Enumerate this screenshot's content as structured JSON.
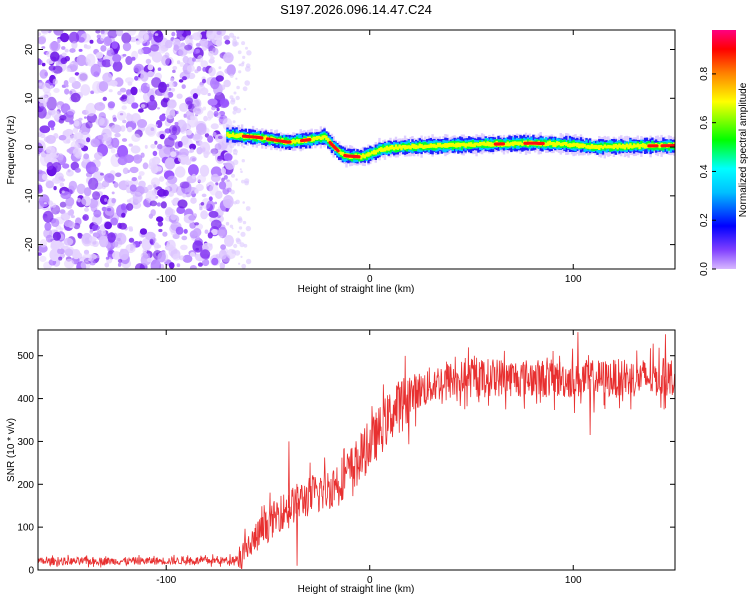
{
  "title": "S197.2026.096.14.47.C24",
  "chart_data": [
    {
      "type": "heatmap",
      "name": "spectrogram",
      "xlabel": "Height of straight line (km)",
      "ylabel": "Frequency (Hz)",
      "xlim": [
        -163,
        150
      ],
      "ylim": [
        -25,
        24
      ],
      "xticks": [
        -100,
        0,
        100
      ],
      "yticks": [
        -20,
        -10,
        0,
        10,
        20
      ],
      "noise_region_x": [
        -163,
        -68
      ],
      "ridge": [
        {
          "x": -70,
          "y": 2.5
        },
        {
          "x": -55,
          "y": 2.0
        },
        {
          "x": -40,
          "y": 1.0
        },
        {
          "x": -30,
          "y": 1.5
        },
        {
          "x": -22,
          "y": 2.0
        },
        {
          "x": -15,
          "y": -1.0
        },
        {
          "x": -12,
          "y": -1.8
        },
        {
          "x": -5,
          "y": -2.0
        },
        {
          "x": 0,
          "y": -1.5
        },
        {
          "x": 5,
          "y": -0.5
        },
        {
          "x": 15,
          "y": 0.0
        },
        {
          "x": 50,
          "y": 0.5
        },
        {
          "x": 80,
          "y": 0.8
        },
        {
          "x": 100,
          "y": 0.5
        },
        {
          "x": 110,
          "y": 0.0
        },
        {
          "x": 130,
          "y": 0.2
        },
        {
          "x": 150,
          "y": 0.3
        }
      ],
      "colorbar": {
        "label": "Normalized spectral amplitude",
        "range": [
          0.0,
          0.98
        ],
        "ticks": [
          "0.0",
          "0.2",
          "0.4",
          "0.6",
          "0.8"
        ],
        "tick_values": [
          0.0,
          0.2,
          0.4,
          0.6,
          0.8
        ]
      }
    },
    {
      "type": "line",
      "name": "snr",
      "xlabel": "Height of straight line (km)",
      "ylabel": "SNR (10 * v/v)",
      "xlim": [
        -163,
        150
      ],
      "ylim": [
        0,
        560
      ],
      "xticks": [
        -100,
        0,
        100
      ],
      "yticks": [
        0,
        100,
        200,
        300,
        400,
        500
      ],
      "color": "#e83030",
      "trend": [
        {
          "x": -163,
          "y": 20
        },
        {
          "x": -70,
          "y": 22
        },
        {
          "x": -63,
          "y": 30
        },
        {
          "x": -55,
          "y": 80
        },
        {
          "x": -45,
          "y": 130
        },
        {
          "x": -35,
          "y": 160
        },
        {
          "x": -20,
          "y": 190
        },
        {
          "x": -10,
          "y": 230
        },
        {
          "x": 0,
          "y": 290
        },
        {
          "x": 10,
          "y": 360
        },
        {
          "x": 20,
          "y": 410
        },
        {
          "x": 35,
          "y": 440
        },
        {
          "x": 60,
          "y": 450
        },
        {
          "x": 100,
          "y": 445
        },
        {
          "x": 150,
          "y": 450
        }
      ],
      "spikes": [
        {
          "x": -40,
          "y": 300
        },
        {
          "x": -36,
          "y": 10
        },
        {
          "x": 93,
          "y": 500
        },
        {
          "x": 102,
          "y": 555
        },
        {
          "x": 108,
          "y": 315
        },
        {
          "x": 145,
          "y": 550
        }
      ]
    }
  ]
}
